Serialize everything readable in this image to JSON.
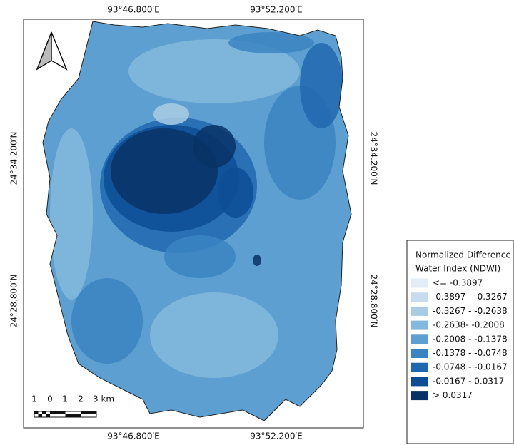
{
  "map": {
    "x_labels_top": [
      "93°46.800′E",
      "93°52.200′E"
    ],
    "x_labels_bottom": [
      "93°46.800′E",
      "93°52.200′E"
    ],
    "y_labels_left": [
      "24°34.200′N",
      "24°28.800′N"
    ],
    "y_labels_right": [
      "24°34.200′N",
      "24°28.800′N"
    ],
    "scale_bar": {
      "labels": [
        "1",
        "0",
        "1",
        "2",
        "3 km"
      ]
    },
    "legend": {
      "title": [
        "Normalized Difference",
        "Water Index (NDWI)"
      ],
      "items": [
        {
          "label": "<= -0.3897",
          "color": "#e3edf8"
        },
        {
          "label": "-0.3897 - -0.3267",
          "color": "#c9dcef"
        },
        {
          "label": "-0.3267 - -0.2638",
          "color": "#a9cce4"
        },
        {
          "label": "-0.2638- -0.2008",
          "color": "#84b8dc"
        },
        {
          "label": "-0.2008 - -0.1378",
          "color": "#5d9fd0"
        },
        {
          "label": "-0.1378 - -0.0748",
          "color": "#3b84c2"
        },
        {
          "label": "-0.0748 - -0.0167",
          "color": "#2167af"
        },
        {
          "label": "-0.0167 - 0.0317",
          "color": "#0d4d96"
        },
        {
          "label": "> 0.0317",
          "color": "#083266"
        }
      ]
    }
  }
}
